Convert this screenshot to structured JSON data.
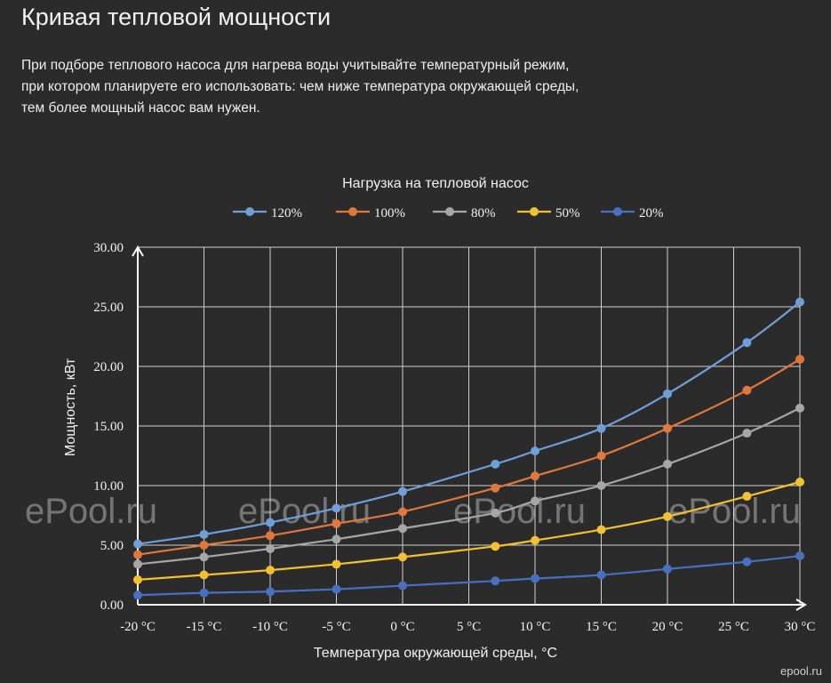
{
  "page": {
    "title": "Кривая тепловой мощности",
    "intro_lines": [
      "При подборе теплового насоса для нагрева воды учитывайте температурный режим,",
      "при котором планируете его использовать: чем ниже температура окружающей среды,",
      "тем более мощный насос вам нужен."
    ],
    "watermark": "ePool.ru",
    "corner_mark": "epool.ru"
  },
  "chart_data": {
    "type": "line",
    "title": "Нагрузка на тепловой насос",
    "xlabel": "Температура окружающей среды, °C",
    "ylabel": "Мощность, кВт",
    "xlim": [
      -20,
      30
    ],
    "ylim": [
      0,
      30
    ],
    "xticks": [
      -20,
      -15,
      -10,
      -5,
      0,
      5,
      10,
      15,
      20,
      25,
      30
    ],
    "xtick_labels": [
      "-20 °C",
      "-15 °C",
      "-10 °C",
      "-5 °C",
      "0 °C",
      "5 °C",
      "10 °C",
      "15 °C",
      "20 °C",
      "25 °C",
      "30 °C"
    ],
    "yticks": [
      0,
      5,
      10,
      15,
      20,
      25,
      30
    ],
    "ytick_labels": [
      "0.00",
      "5.00",
      "10.00",
      "15.00",
      "20.00",
      "25.00",
      "30.00"
    ],
    "grid": true,
    "legend_position": "top",
    "x": [
      -20,
      -15,
      -10,
      -5,
      0,
      7,
      10,
      15,
      20,
      26,
      30
    ],
    "series": [
      {
        "name": "120%",
        "color": "#6f9fd8",
        "values": [
          5.1,
          5.9,
          6.9,
          8.1,
          9.5,
          11.8,
          12.9,
          14.8,
          17.7,
          22.0,
          25.4
        ]
      },
      {
        "name": "100%",
        "color": "#e0783c",
        "values": [
          4.2,
          5.0,
          5.8,
          6.8,
          7.8,
          9.8,
          10.8,
          12.5,
          14.8,
          18.0,
          20.6
        ]
      },
      {
        "name": "80%",
        "color": "#a6a6a6",
        "values": [
          3.4,
          4.0,
          4.7,
          5.5,
          6.4,
          7.7,
          8.7,
          10.0,
          11.8,
          14.4,
          16.5
        ]
      },
      {
        "name": "50%",
        "color": "#f2c131",
        "values": [
          2.1,
          2.5,
          2.9,
          3.4,
          4.0,
          4.9,
          5.4,
          6.3,
          7.4,
          9.1,
          10.3
        ]
      },
      {
        "name": "20%",
        "color": "#4a6fc0",
        "values": [
          0.8,
          1.0,
          1.1,
          1.3,
          1.6,
          2.0,
          2.2,
          2.5,
          3.0,
          3.6,
          4.1
        ]
      }
    ]
  }
}
